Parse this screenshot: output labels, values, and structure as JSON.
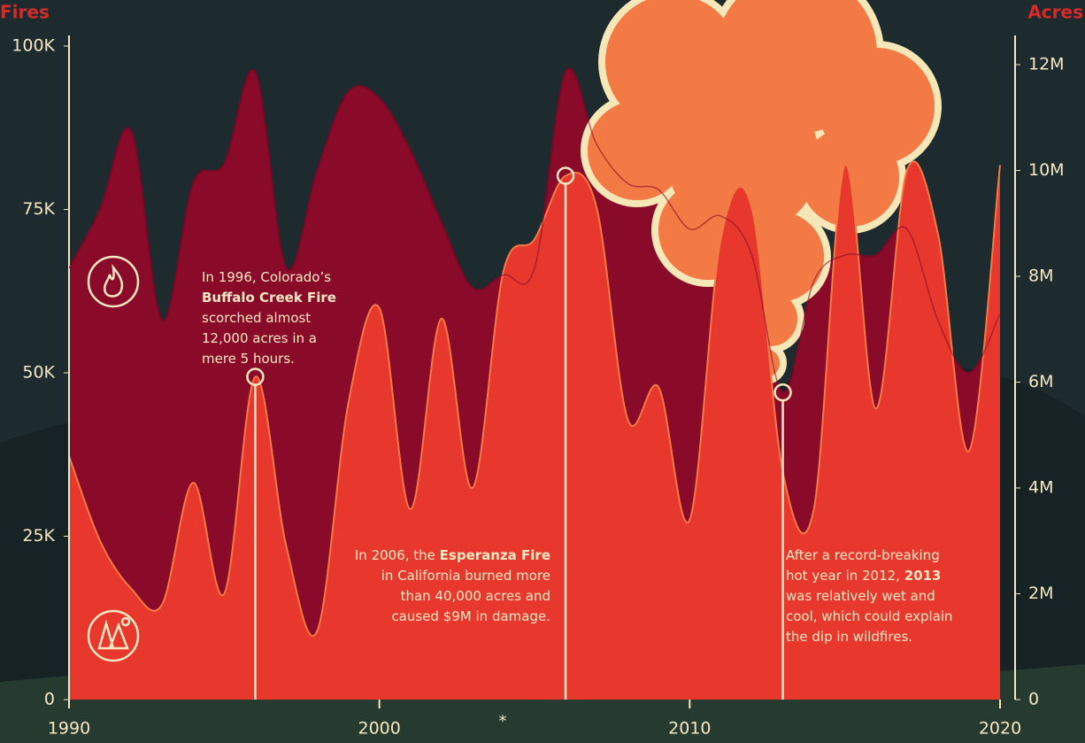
{
  "chart_data": {
    "type": "area",
    "y_axis_title": "Fires",
    "y2_axis_title": "Acres",
    "x": [
      1990,
      1991,
      1992,
      1993,
      1994,
      1995,
      1996,
      1997,
      1998,
      1999,
      2000,
      2001,
      2002,
      2003,
      2004,
      2005,
      2006,
      2007,
      2008,
      2009,
      2010,
      2011,
      2012,
      2013,
      2014,
      2015,
      2016,
      2017,
      2018,
      2019,
      2020
    ],
    "series": [
      {
        "name": "Fires",
        "color": "#8a0a2a",
        "values": [
          66000,
          75000,
          87000,
          58000,
          79000,
          82000,
          96000,
          66000,
          81000,
          93000,
          92000,
          84000,
          73000,
          63000,
          65000,
          66000,
          96000,
          85000,
          79000,
          78000,
          72000,
          74000,
          68000,
          47000,
          64000,
          68000,
          68000,
          72000,
          58000,
          50000,
          59000
        ]
      },
      {
        "name": "Acres",
        "color": "#e8372c",
        "axis": "y2",
        "values": [
          4600000,
          3000000,
          2100000,
          1800000,
          4100000,
          2000000,
          6100000,
          2900000,
          1300000,
          5600000,
          7400000,
          3600000,
          7200000,
          4000000,
          8100000,
          8700000,
          9900000,
          9300000,
          5300000,
          5900000,
          3400000,
          8700000,
          9300000,
          4300000,
          3600000,
          10100000,
          5500000,
          10000000,
          8800000,
          4700000,
          10100000
        ]
      }
    ],
    "xlim": [
      1990,
      2020
    ],
    "xticks": [
      1990,
      2000,
      2010,
      2020
    ],
    "ylim": [
      0,
      100000
    ],
    "yticks": [
      0,
      {
        "value": 25000,
        "label": "25K"
      },
      {
        "value": 50000,
        "label": "50K"
      },
      {
        "value": 75000,
        "label": "75K"
      },
      {
        "value": 100000,
        "label": "100K"
      }
    ],
    "y2lim": [
      0,
      12000000
    ],
    "y2ticks": [
      0,
      {
        "value": 2000000,
        "label": "2M"
      },
      {
        "value": 4000000,
        "label": "4M"
      },
      {
        "value": 6000000,
        "label": "6M"
      },
      {
        "value": 8000000,
        "label": "8M"
      },
      {
        "value": 10000000,
        "label": "10M"
      },
      {
        "value": 12000000,
        "label": "12M"
      }
    ],
    "footnote_marker": "*",
    "annotations": [
      {
        "series": 1,
        "index": 6,
        "align": "left",
        "lines": [
          [
            {
              "text": "In 1996, Colorado’s"
            }
          ],
          [
            {
              "text": "Buffalo Creek Fire",
              "bold": true
            }
          ],
          [
            {
              "text": "scorched almost"
            }
          ],
          [
            {
              "text": "12,000 acres in a"
            }
          ],
          [
            {
              "text": "mere 5 hours."
            }
          ]
        ]
      },
      {
        "series": 1,
        "index": 16,
        "align": "right",
        "lines": [
          [
            {
              "text": "In 2006, the "
            },
            {
              "text": "Esperanza Fire",
              "bold": true
            }
          ],
          [
            {
              "text": "in California burned more"
            }
          ],
          [
            {
              "text": "than 40,000 acres and"
            }
          ],
          [
            {
              "text": "caused $9M in damage."
            }
          ]
        ]
      },
      {
        "series": 0,
        "index": 23,
        "align": "left",
        "lines": [
          [
            {
              "text": "After a record-breaking"
            }
          ],
          [
            {
              "text": "hot year in 2012, "
            },
            {
              "text": "2013",
              "bold": true
            }
          ],
          [
            {
              "text": "was relatively wet and"
            }
          ],
          [
            {
              "text": "cool, which could explain"
            }
          ],
          [
            {
              "text": "the dip in wildfires."
            }
          ]
        ]
      }
    ]
  }
}
